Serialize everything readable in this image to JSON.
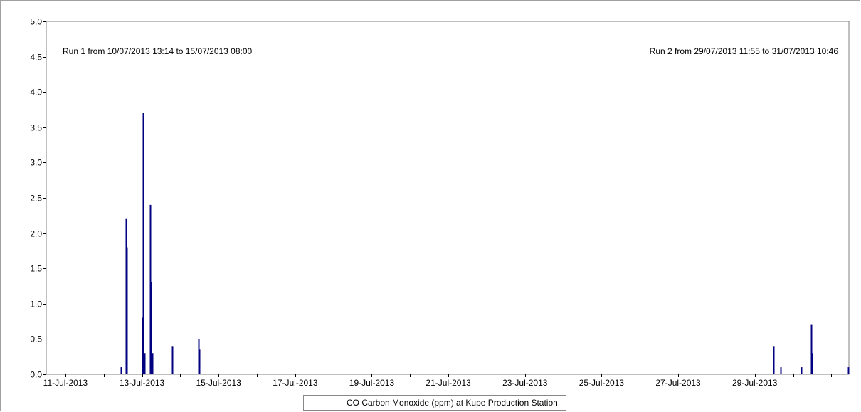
{
  "chart_data": {
    "type": "bar",
    "title": "",
    "xlabel": "",
    "ylabel": "",
    "ylim": [
      0,
      5.0
    ],
    "xlim": [
      "2013-07-10T12:00",
      "2013-07-31T11:00"
    ],
    "grid": true,
    "yticks": [
      "0.0",
      "0.5",
      "1.0",
      "1.5",
      "2.0",
      "2.5",
      "3.0",
      "3.5",
      "4.0",
      "4.5",
      "5.0"
    ],
    "xticks": [
      {
        "date": "2013-07-11",
        "label": "11-Jul-2013"
      },
      {
        "date": "2013-07-13",
        "label": "13-Jul-2013"
      },
      {
        "date": "2013-07-15",
        "label": "15-Jul-2013"
      },
      {
        "date": "2013-07-17",
        "label": "17-Jul-2013"
      },
      {
        "date": "2013-07-19",
        "label": "19-Jul-2013"
      },
      {
        "date": "2013-07-21",
        "label": "21-Jul-2013"
      },
      {
        "date": "2013-07-23",
        "label": "23-Jul-2013"
      },
      {
        "date": "2013-07-25",
        "label": "25-Jul-2013"
      },
      {
        "date": "2013-07-27",
        "label": "27-Jul-2013"
      },
      {
        "date": "2013-07-29",
        "label": "29-Jul-2013"
      }
    ],
    "annotations": [
      {
        "text": "Run 1 from 10/07/2013 13:14 to 15/07/2013 08:00",
        "align": "left"
      },
      {
        "text": "Run 2 from 29/07/2013 11:55 to 31/07/2013 10:46",
        "align": "right"
      }
    ],
    "legend_position": "bottom-center",
    "series": [
      {
        "name": "CO Carbon Monoxide (ppm) at Kupe Production Station",
        "color": "#000080",
        "points": [
          {
            "x": "2013-07-12T11:00",
            "y": 0.1
          },
          {
            "x": "2013-07-12T14:00",
            "y": 2.2
          },
          {
            "x": "2013-07-12T14:30",
            "y": 1.8
          },
          {
            "x": "2013-07-13T00:00",
            "y": 0.8
          },
          {
            "x": "2013-07-13T00:40",
            "y": 3.7
          },
          {
            "x": "2013-07-13T01:30",
            "y": 0.3
          },
          {
            "x": "2013-07-13T05:00",
            "y": 2.4
          },
          {
            "x": "2013-07-13T05:40",
            "y": 1.3
          },
          {
            "x": "2013-07-13T06:20",
            "y": 0.3
          },
          {
            "x": "2013-07-13T19:00",
            "y": 0.4
          },
          {
            "x": "2013-07-14T11:20",
            "y": 0.5
          },
          {
            "x": "2013-07-14T11:50",
            "y": 0.35
          },
          {
            "x": "2013-07-29T11:55",
            "y": 0.4
          },
          {
            "x": "2013-07-29T16:00",
            "y": 0.1
          },
          {
            "x": "2013-07-30T05:00",
            "y": 0.1
          },
          {
            "x": "2013-07-30T11:30",
            "y": 0.7
          },
          {
            "x": "2013-07-30T12:00",
            "y": 0.3
          },
          {
            "x": "2013-07-31T10:40",
            "y": 0.1
          }
        ]
      }
    ]
  }
}
